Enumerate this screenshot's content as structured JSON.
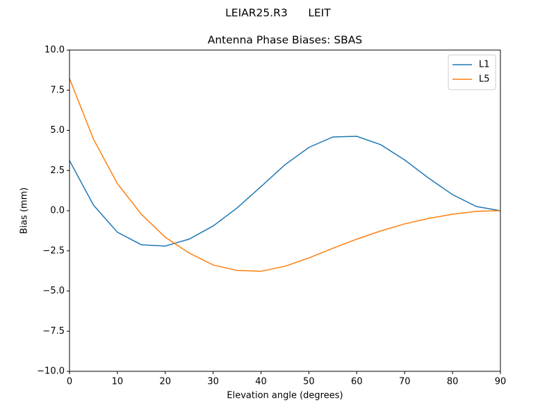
{
  "chart_data": {
    "type": "line",
    "suptitle": "LEIAR25.R3      LEIT",
    "title": "Antenna Phase Biases: SBAS",
    "x_label": "Elevation angle (degrees)",
    "y_label": "Bias (mm)",
    "x": [
      0,
      5,
      10,
      15,
      20,
      25,
      30,
      35,
      40,
      45,
      50,
      55,
      60,
      65,
      70,
      75,
      80,
      85,
      90
    ],
    "series": [
      {
        "name": "L1",
        "color": "#1f77b4",
        "values": [
          3.12,
          0.35,
          -1.34,
          -2.12,
          -2.2,
          -1.77,
          -0.95,
          0.17,
          1.5,
          2.86,
          3.94,
          4.59,
          4.63,
          4.11,
          3.16,
          2.03,
          1.0,
          0.26,
          0.0
        ]
      },
      {
        "name": "L5",
        "color": "#ff7f0e",
        "values": [
          8.23,
          4.46,
          1.69,
          -0.22,
          -1.65,
          -2.64,
          -3.38,
          -3.72,
          -3.77,
          -3.46,
          -2.94,
          -2.34,
          -1.77,
          -1.26,
          -0.82,
          -0.48,
          -0.22,
          -0.04,
          0.0
        ]
      }
    ],
    "xlim": [
      0,
      90
    ],
    "ylim": [
      -10,
      10
    ],
    "xticks": [
      0,
      10,
      20,
      30,
      40,
      50,
      60,
      70,
      80,
      90
    ],
    "yticks": [
      {
        "value": -10,
        "label": "−10.0"
      },
      {
        "value": -7.5,
        "label": "−7.5"
      },
      {
        "value": -5,
        "label": "−5.0"
      },
      {
        "value": -2.5,
        "label": "−2.5"
      },
      {
        "value": 0,
        "label": "0.0"
      },
      {
        "value": 2.5,
        "label": "2.5"
      },
      {
        "value": 5,
        "label": "5.0"
      },
      {
        "value": 7.5,
        "label": "7.5"
      },
      {
        "value": 10,
        "label": "10.0"
      }
    ],
    "legend": "upper right",
    "grid": false
  }
}
